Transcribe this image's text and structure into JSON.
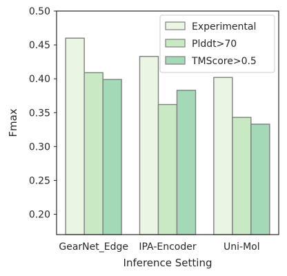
{
  "chart_data": {
    "type": "bar",
    "xlabel": "Inference Setting",
    "ylabel": "Fmax",
    "ylim": [
      0.17,
      0.5
    ],
    "yticks": [
      0.2,
      0.25,
      0.3,
      0.35,
      0.4,
      0.45,
      0.5
    ],
    "categories": [
      "GearNet_Edge",
      "IPA-Encoder",
      "Uni-Mol"
    ],
    "series": [
      {
        "name": "Experimental",
        "values": [
          0.46,
          0.433,
          0.402
        ],
        "color": "#eaf5e3"
      },
      {
        "name": "Plddt>70",
        "values": [
          0.409,
          0.362,
          0.343
        ],
        "color": "#c9e8c4"
      },
      {
        "name": "TMScore>0.5",
        "values": [
          0.399,
          0.383,
          0.333
        ],
        "color": "#a3d9b7"
      }
    ],
    "legend_position": "top-right",
    "grid": false,
    "bar_edge_color": "#7f7f7f",
    "axis_color": "#262626"
  }
}
